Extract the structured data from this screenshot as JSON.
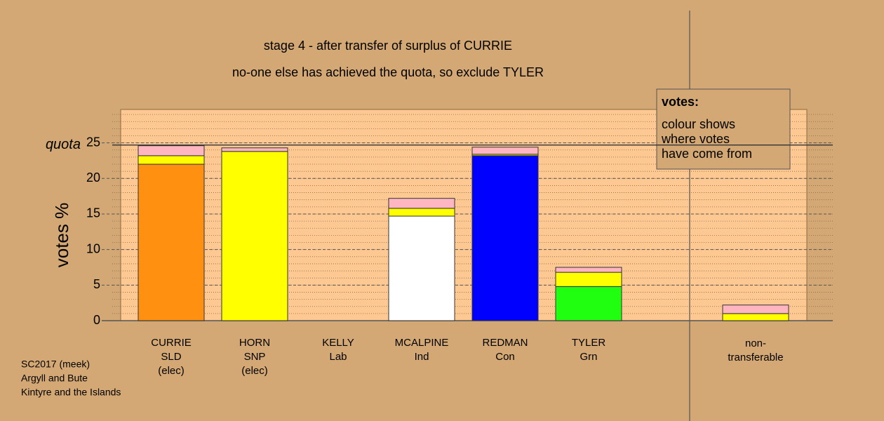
{
  "chart_data": {
    "type": "stacked_bar",
    "title": "stage 4 - after transfer of surplus of CURRIE",
    "subtitle": "no-one else has achieved the quota, so exclude TYLER",
    "y_label": "votes %",
    "categories": [
      [
        "CURRIE",
        "SLD",
        "(elec)"
      ],
      [
        "HORN",
        "SNP",
        "(elec)"
      ],
      [
        "KELLY",
        "Lab"
      ],
      [
        "MCALPINE",
        "Ind"
      ],
      [
        "REDMAN",
        "Con"
      ],
      [
        "TYLER",
        "Grn"
      ],
      [
        "non-",
        "transferable"
      ]
    ],
    "series": [
      {
        "colors": [
          "#ff9010",
          "#ffff00",
          "#ff0000",
          "#ffffff",
          "#0000ff",
          "#20ff10",
          "#ffffff"
        ],
        "values": [
          22.0,
          23.8,
          0,
          14.7,
          23.2,
          4.8,
          0
        ]
      },
      {
        "color": "#ffff00",
        "values": [
          1.2,
          0,
          0,
          1.1,
          0.2,
          2.0,
          1.0
        ]
      },
      {
        "color": "#ffb6c1",
        "values": [
          1.4,
          0.5,
          0,
          1.4,
          1.0,
          0.7,
          1.2
        ]
      }
    ],
    "quota": 24.7,
    "quota_label": "quota",
    "ylim": [
      0,
      29.7
    ],
    "yticks": [
      0,
      5,
      10,
      15,
      20,
      25
    ],
    "grid": true,
    "minor_grid_step": 1,
    "legend": {
      "title": "votes:",
      "lines": [
        "colour shows",
        "where votes",
        "have come from"
      ]
    },
    "footnote": [
      "SC2017 (meek)",
      "Argyll and Bute",
      "Kintyre and the Islands"
    ]
  }
}
